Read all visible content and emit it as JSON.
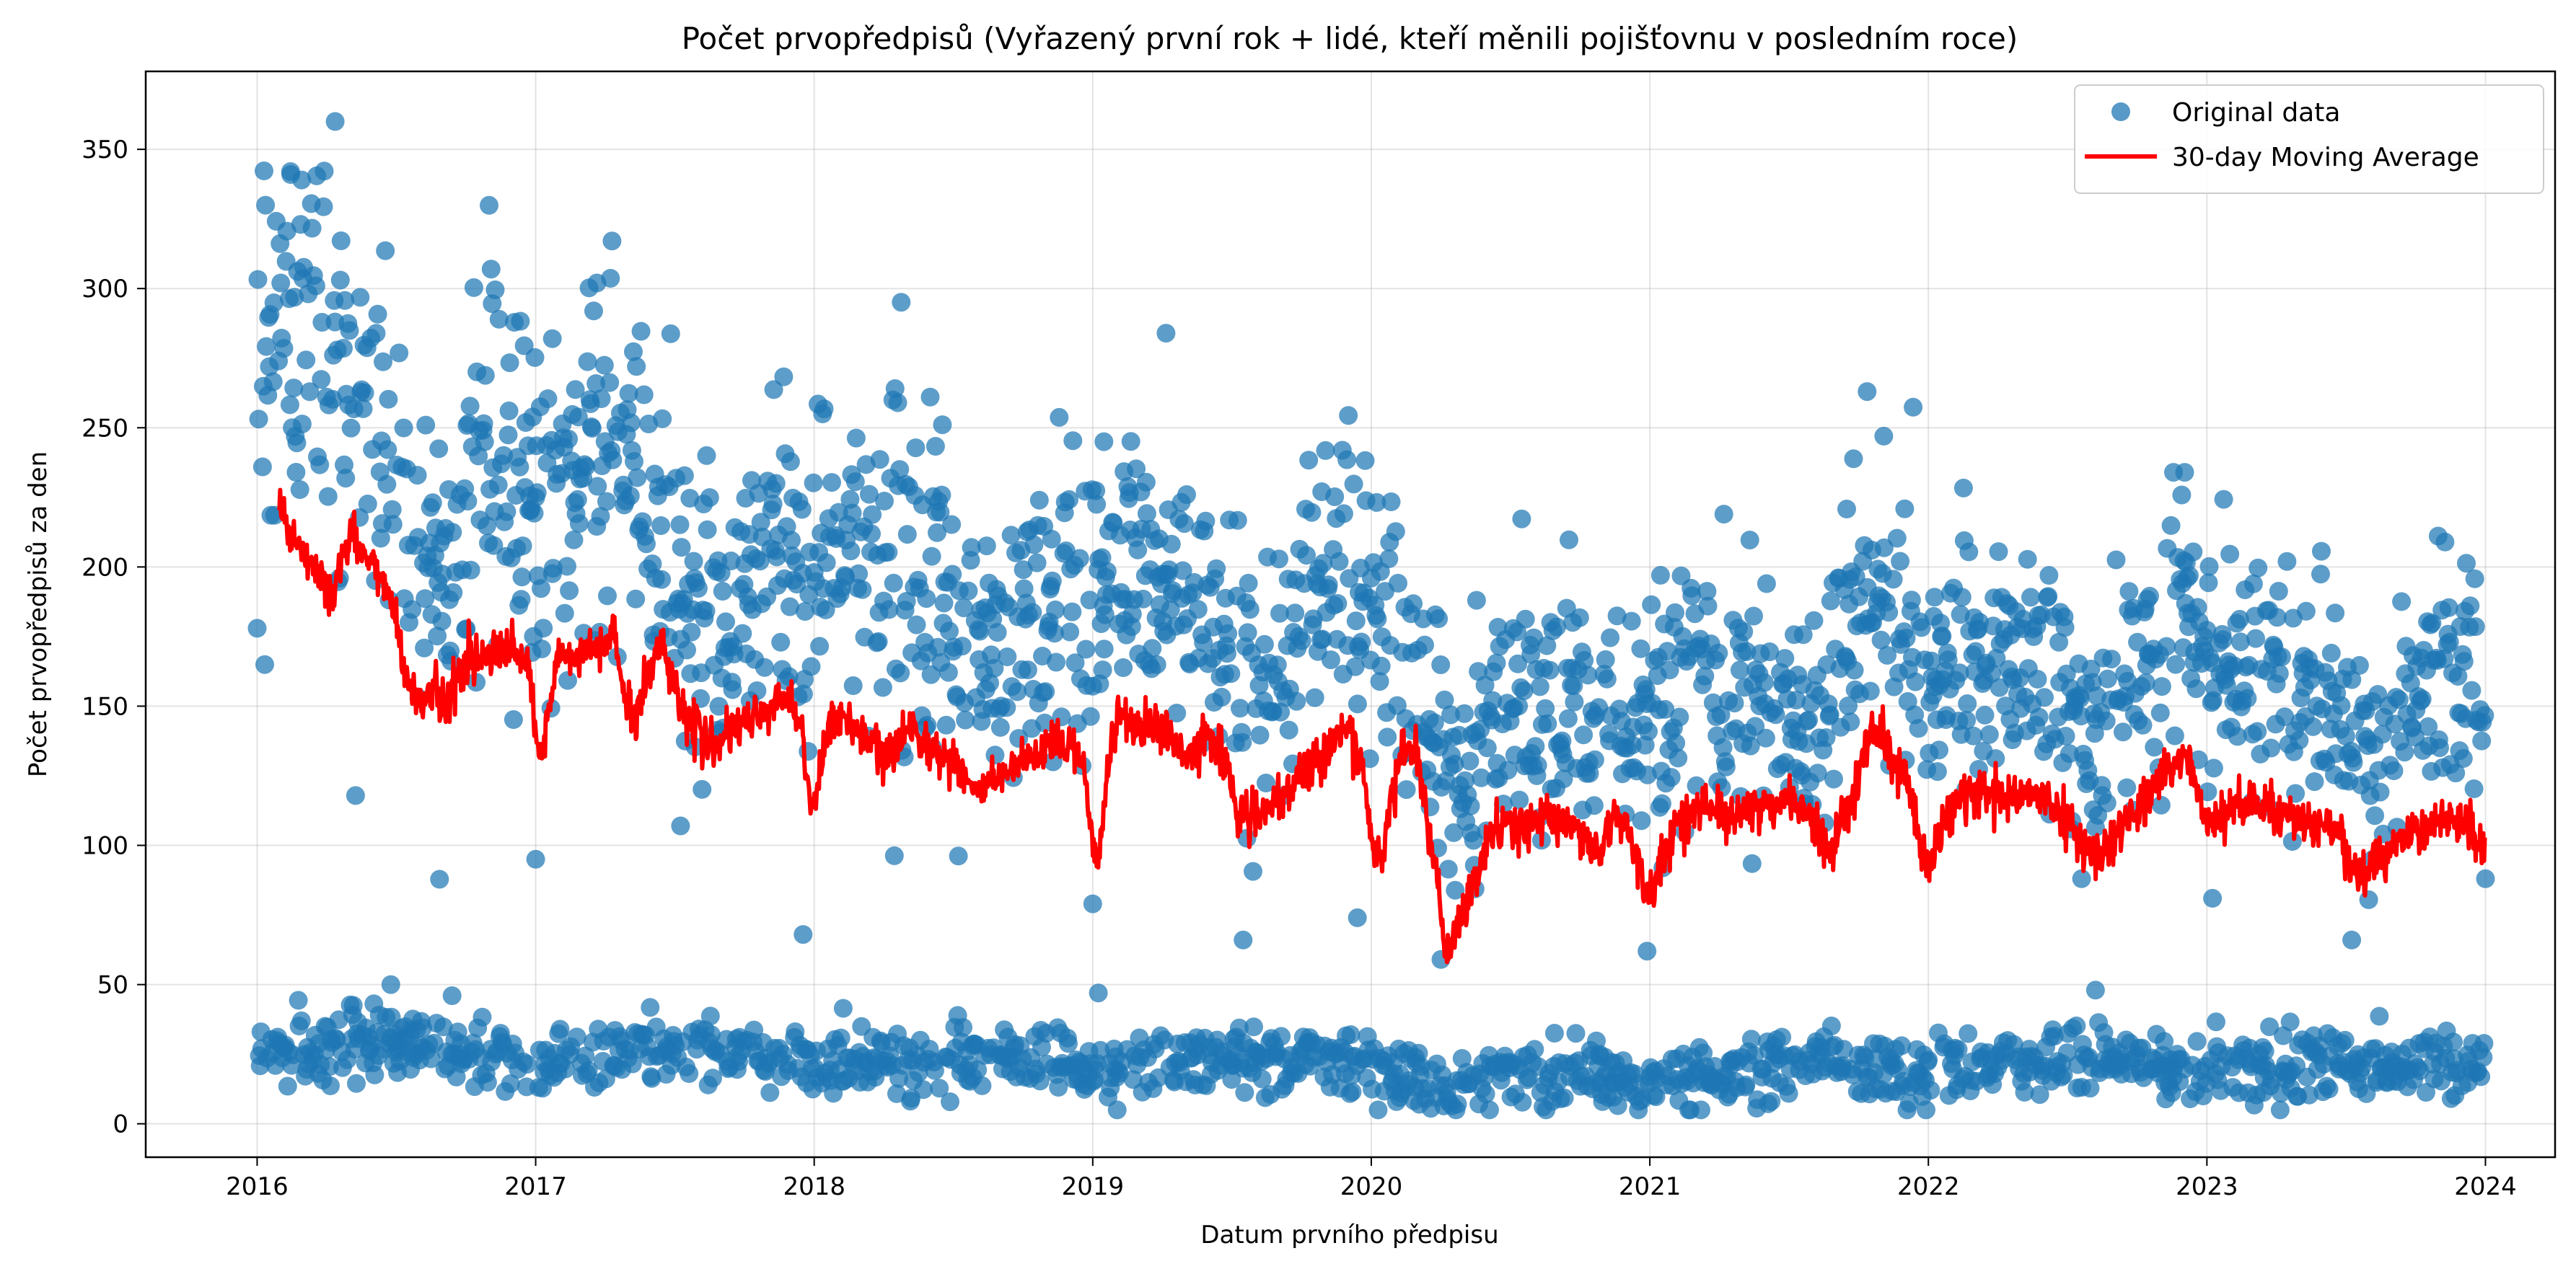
{
  "chart_data": {
    "type": "scatter",
    "title": "Počet prvopředpisů (Vyřazený první rok + lidé, kteří měnili pojišťovnu v posledním roce)",
    "xlabel": "Datum prvního předpisu",
    "ylabel": "Počet prvopředpisů za den",
    "xlim": [
      2015.6,
      2024.25
    ],
    "ylim": [
      -12,
      378
    ],
    "x_ticks": [
      "2016",
      "2017",
      "2018",
      "2019",
      "2020",
      "2021",
      "2022",
      "2023",
      "2024"
    ],
    "y_ticks": [
      0,
      50,
      100,
      150,
      200,
      250,
      300,
      350
    ],
    "grid": true,
    "legend_position": "top-right",
    "colors": {
      "scatter": "#1f77b4",
      "moving_average": "#ff0000"
    },
    "series": [
      {
        "name": "Original data",
        "type": "scatter",
        "upper_cluster_monthly_center": [
          [
            2016.0,
            290
          ],
          [
            2016.1,
            285
          ],
          [
            2016.2,
            278
          ],
          [
            2016.3,
            275
          ],
          [
            2016.4,
            268
          ],
          [
            2016.5,
            230
          ],
          [
            2016.6,
            210
          ],
          [
            2016.7,
            215
          ],
          [
            2016.8,
            238
          ],
          [
            2016.9,
            235
          ],
          [
            2017.0,
            225
          ],
          [
            2017.1,
            235
          ],
          [
            2017.2,
            240
          ],
          [
            2017.3,
            238
          ],
          [
            2017.4,
            230
          ],
          [
            2017.5,
            200
          ],
          [
            2017.6,
            185
          ],
          [
            2017.7,
            180
          ],
          [
            2017.8,
            205
          ],
          [
            2017.9,
            210
          ],
          [
            2018.0,
            200
          ],
          [
            2018.1,
            200
          ],
          [
            2018.2,
            205
          ],
          [
            2018.3,
            210
          ],
          [
            2018.4,
            190
          ],
          [
            2018.5,
            165
          ],
          [
            2018.6,
            170
          ],
          [
            2018.7,
            175
          ],
          [
            2018.8,
            185
          ],
          [
            2018.9,
            190
          ],
          [
            2019.0,
            180
          ],
          [
            2019.1,
            200
          ],
          [
            2019.2,
            195
          ],
          [
            2019.3,
            190
          ],
          [
            2019.4,
            180
          ],
          [
            2019.5,
            165
          ],
          [
            2019.6,
            160
          ],
          [
            2019.7,
            175
          ],
          [
            2019.8,
            200
          ],
          [
            2019.9,
            205
          ],
          [
            2020.0,
            185
          ],
          [
            2020.1,
            170
          ],
          [
            2020.2,
            150
          ],
          [
            2020.3,
            120
          ],
          [
            2020.4,
            145
          ],
          [
            2020.5,
            150
          ],
          [
            2020.6,
            150
          ],
          [
            2020.7,
            155
          ],
          [
            2020.8,
            145
          ],
          [
            2020.9,
            135
          ],
          [
            2021.0,
            140
          ],
          [
            2021.1,
            155
          ],
          [
            2021.2,
            160
          ],
          [
            2021.3,
            160
          ],
          [
            2021.4,
            155
          ],
          [
            2021.5,
            150
          ],
          [
            2021.6,
            145
          ],
          [
            2021.7,
            180
          ],
          [
            2021.8,
            195
          ],
          [
            2021.9,
            180
          ],
          [
            2022.0,
            155
          ],
          [
            2022.1,
            165
          ],
          [
            2022.2,
            165
          ],
          [
            2022.3,
            160
          ],
          [
            2022.4,
            160
          ],
          [
            2022.5,
            150
          ],
          [
            2022.6,
            130
          ],
          [
            2022.7,
            150
          ],
          [
            2022.8,
            180
          ],
          [
            2022.9,
            185
          ],
          [
            2023.0,
            160
          ],
          [
            2023.1,
            160
          ],
          [
            2023.2,
            160
          ],
          [
            2023.3,
            155
          ],
          [
            2023.4,
            155
          ],
          [
            2023.5,
            140
          ],
          [
            2023.6,
            125
          ],
          [
            2023.7,
            145
          ],
          [
            2023.8,
            160
          ],
          [
            2023.9,
            160
          ],
          [
            2024.0,
            155
          ]
        ],
        "lower_cluster_monthly_center": [
          [
            2016.0,
            25
          ],
          [
            2016.5,
            30
          ],
          [
            2017.0,
            20
          ],
          [
            2017.5,
            28
          ],
          [
            2018.0,
            22
          ],
          [
            2018.5,
            24
          ],
          [
            2019.0,
            20
          ],
          [
            2019.5,
            24
          ],
          [
            2020.0,
            22
          ],
          [
            2020.3,
            10
          ],
          [
            2020.5,
            22
          ],
          [
            2021.0,
            14
          ],
          [
            2021.5,
            22
          ],
          [
            2022.0,
            18
          ],
          [
            2022.5,
            24
          ],
          [
            2023.0,
            20
          ],
          [
            2023.5,
            22
          ],
          [
            2024.0,
            22
          ]
        ],
        "outliers": [
          [
            2016.28,
            360
          ],
          [
            2016.12,
            342
          ],
          [
            2016.16,
            339
          ],
          [
            2016.48,
            50
          ],
          [
            2016.7,
            46
          ],
          [
            2016.84,
            307
          ],
          [
            2017.06,
            282
          ],
          [
            2017.22,
            302
          ],
          [
            2017.52,
            107
          ],
          [
            2017.0,
            95
          ],
          [
            2017.96,
            68
          ],
          [
            2018.3,
            259
          ],
          [
            2019.0,
            79
          ],
          [
            2019.02,
            47
          ],
          [
            2019.04,
            245
          ],
          [
            2019.54,
            66
          ],
          [
            2019.95,
            74
          ],
          [
            2020.25,
            59
          ],
          [
            2020.99,
            62
          ],
          [
            2021.78,
            263
          ],
          [
            2021.84,
            247
          ],
          [
            2022.55,
            88
          ],
          [
            2022.88,
            234
          ],
          [
            2022.92,
            234
          ],
          [
            2023.02,
            81
          ],
          [
            2023.52,
            66
          ],
          [
            2024.0,
            88
          ],
          [
            2022.6,
            48
          ]
        ]
      },
      {
        "name": "30-day Moving Average",
        "type": "line",
        "points": [
          [
            2016.08,
            222
          ],
          [
            2016.12,
            212
          ],
          [
            2016.18,
            204
          ],
          [
            2016.22,
            198
          ],
          [
            2016.26,
            188
          ],
          [
            2016.3,
            200
          ],
          [
            2016.33,
            212
          ],
          [
            2016.38,
            205
          ],
          [
            2016.45,
            195
          ],
          [
            2016.5,
            183
          ],
          [
            2016.53,
            162
          ],
          [
            2016.58,
            152
          ],
          [
            2016.63,
            156
          ],
          [
            2016.68,
            150
          ],
          [
            2016.72,
            163
          ],
          [
            2016.78,
            168
          ],
          [
            2016.85,
            168
          ],
          [
            2016.92,
            170
          ],
          [
            2016.97,
            165
          ],
          [
            2017.0,
            140
          ],
          [
            2017.02,
            130
          ],
          [
            2017.05,
            148
          ],
          [
            2017.08,
            168
          ],
          [
            2017.15,
            168
          ],
          [
            2017.22,
            170
          ],
          [
            2017.28,
            177
          ],
          [
            2017.32,
            152
          ],
          [
            2017.36,
            145
          ],
          [
            2017.4,
            162
          ],
          [
            2017.45,
            172
          ],
          [
            2017.5,
            160
          ],
          [
            2017.54,
            145
          ],
          [
            2017.58,
            142
          ],
          [
            2017.62,
            137
          ],
          [
            2017.68,
            137
          ],
          [
            2017.72,
            142
          ],
          [
            2017.78,
            145
          ],
          [
            2017.84,
            150
          ],
          [
            2017.9,
            153
          ],
          [
            2017.95,
            146
          ],
          [
            2017.99,
            112
          ],
          [
            2018.02,
            125
          ],
          [
            2018.06,
            148
          ],
          [
            2018.1,
            145
          ],
          [
            2018.16,
            140
          ],
          [
            2018.22,
            135
          ],
          [
            2018.26,
            130
          ],
          [
            2018.3,
            135
          ],
          [
            2018.34,
            145
          ],
          [
            2018.38,
            140
          ],
          [
            2018.45,
            132
          ],
          [
            2018.52,
            130
          ],
          [
            2018.55,
            124
          ],
          [
            2018.58,
            118
          ],
          [
            2018.62,
            122
          ],
          [
            2018.68,
            125
          ],
          [
            2018.74,
            128
          ],
          [
            2018.8,
            132
          ],
          [
            2018.86,
            135
          ],
          [
            2018.92,
            137
          ],
          [
            2018.97,
            130
          ],
          [
            2019.0,
            100
          ],
          [
            2019.02,
            95
          ],
          [
            2019.06,
            132
          ],
          [
            2019.1,
            148
          ],
          [
            2019.16,
            142
          ],
          [
            2019.22,
            144
          ],
          [
            2019.28,
            138
          ],
          [
            2019.33,
            130
          ],
          [
            2019.38,
            137
          ],
          [
            2019.42,
            140
          ],
          [
            2019.48,
            130
          ],
          [
            2019.52,
            112
          ],
          [
            2019.56,
            110
          ],
          [
            2019.62,
            112
          ],
          [
            2019.68,
            115
          ],
          [
            2019.74,
            125
          ],
          [
            2019.8,
            130
          ],
          [
            2019.86,
            138
          ],
          [
            2019.92,
            143
          ],
          [
            2019.97,
            125
          ],
          [
            2020.0,
            102
          ],
          [
            2020.04,
            95
          ],
          [
            2020.08,
            120
          ],
          [
            2020.12,
            138
          ],
          [
            2020.16,
            133
          ],
          [
            2020.2,
            110
          ],
          [
            2020.24,
            85
          ],
          [
            2020.27,
            58
          ],
          [
            2020.32,
            72
          ],
          [
            2020.38,
            90
          ],
          [
            2020.42,
            102
          ],
          [
            2020.48,
            108
          ],
          [
            2020.55,
            106
          ],
          [
            2020.62,
            110
          ],
          [
            2020.68,
            108
          ],
          [
            2020.75,
            106
          ],
          [
            2020.8,
            96
          ],
          [
            2020.84,
            103
          ],
          [
            2020.88,
            110
          ],
          [
            2020.92,
            108
          ],
          [
            2020.97,
            90
          ],
          [
            2021.0,
            80
          ],
          [
            2021.04,
            94
          ],
          [
            2021.08,
            105
          ],
          [
            2021.14,
            112
          ],
          [
            2021.2,
            115
          ],
          [
            2021.26,
            110
          ],
          [
            2021.32,
            112
          ],
          [
            2021.38,
            115
          ],
          [
            2021.44,
            112
          ],
          [
            2021.5,
            118
          ],
          [
            2021.56,
            112
          ],
          [
            2021.62,
            100
          ],
          [
            2021.66,
            98
          ],
          [
            2021.72,
            118
          ],
          [
            2021.78,
            138
          ],
          [
            2021.82,
            142
          ],
          [
            2021.86,
            132
          ],
          [
            2021.92,
            125
          ],
          [
            2021.97,
            100
          ],
          [
            2022.0,
            92
          ],
          [
            2022.06,
            110
          ],
          [
            2022.12,
            118
          ],
          [
            2022.2,
            120
          ],
          [
            2022.28,
            118
          ],
          [
            2022.36,
            118
          ],
          [
            2022.44,
            115
          ],
          [
            2022.5,
            110
          ],
          [
            2022.56,
            100
          ],
          [
            2022.62,
            97
          ],
          [
            2022.68,
            105
          ],
          [
            2022.74,
            112
          ],
          [
            2022.8,
            120
          ],
          [
            2022.86,
            128
          ],
          [
            2022.92,
            132
          ],
          [
            2022.97,
            120
          ],
          [
            2023.0,
            105
          ],
          [
            2023.04,
            112
          ],
          [
            2023.1,
            115
          ],
          [
            2023.18,
            115
          ],
          [
            2023.26,
            112
          ],
          [
            2023.34,
            110
          ],
          [
            2023.42,
            108
          ],
          [
            2023.48,
            103
          ],
          [
            2023.52,
            92
          ],
          [
            2023.56,
            88
          ],
          [
            2023.62,
            95
          ],
          [
            2023.7,
            102
          ],
          [
            2023.78,
            106
          ],
          [
            2023.86,
            110
          ],
          [
            2023.94,
            110
          ],
          [
            2023.98,
            100
          ],
          [
            2024.0,
            95
          ]
        ]
      }
    ]
  }
}
